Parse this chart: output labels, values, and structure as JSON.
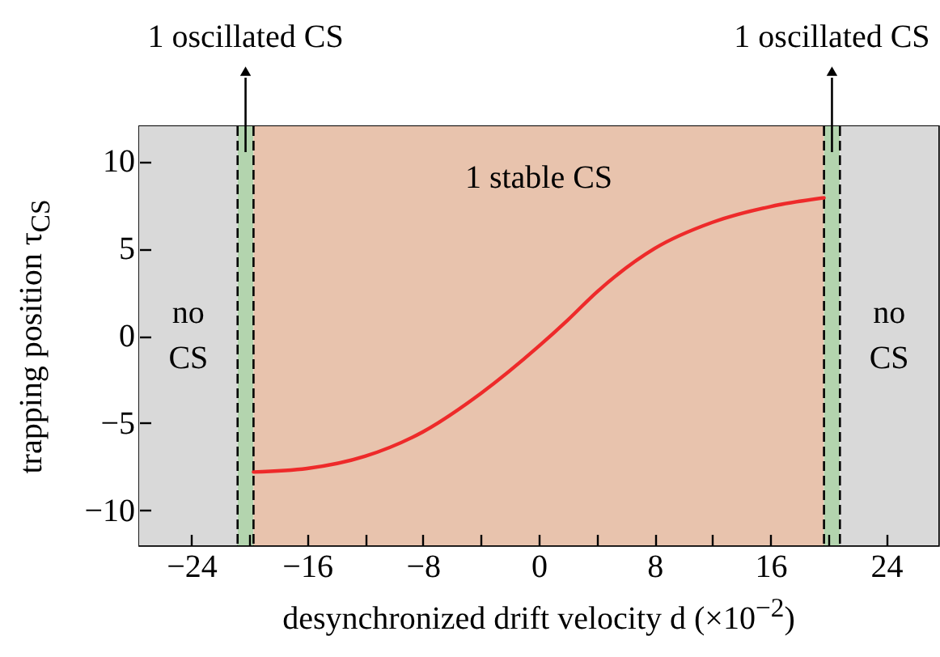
{
  "chart_data": {
    "type": "line",
    "xlabel": "desynchronized drift velocity d (×10$^{−2}$)",
    "ylabel": "trapping position τ$_{CS}$",
    "x": [
      -19.7,
      -16,
      -12,
      -8,
      -4,
      0,
      2,
      4,
      8,
      12,
      16,
      19.7
    ],
    "series": [
      {
        "color": "#ee2a2a",
        "values": [
          -7.8,
          -7.6,
          -6.9,
          -5.5,
          -3.3,
          -0.6,
          0.9,
          2.5,
          5.0,
          6.5,
          7.4,
          7.9
        ]
      }
    ],
    "xlim": [
      -27.6,
      27.6
    ],
    "ylim": [
      -12,
      12
    ],
    "xticks": [
      -24,
      {
        "value": -20,
        "label": null
      },
      -16,
      {
        "value": -12,
        "label": null
      },
      -8,
      {
        "value": -4,
        "label": null
      },
      0,
      {
        "value": 4,
        "label": null
      },
      8,
      {
        "value": 12,
        "label": null
      },
      16,
      {
        "value": 20,
        "label": null
      },
      24
    ],
    "yticks": [
      -10,
      -5,
      0,
      5,
      10
    ],
    "bands": [
      {
        "axis": "x",
        "from": -27.6,
        "to": -20.8,
        "label": "no\nCS",
        "color": "#d9d9d9"
      },
      {
        "axis": "x",
        "from": -20.8,
        "to": -19.7,
        "label": "1 oscillated CS",
        "color": "#b3d4ae"
      },
      {
        "axis": "x",
        "from": -19.7,
        "to": 19.7,
        "label": "1 stable CS",
        "color": "#e8c3ad"
      },
      {
        "axis": "x",
        "from": 19.7,
        "to": 20.8,
        "label": "1 oscillated CS",
        "color": "#b3d4ae"
      },
      {
        "axis": "x",
        "from": 20.8,
        "to": 27.6,
        "label": "no\nCS",
        "color": "#d9d9d9"
      }
    ],
    "grid": false
  }
}
